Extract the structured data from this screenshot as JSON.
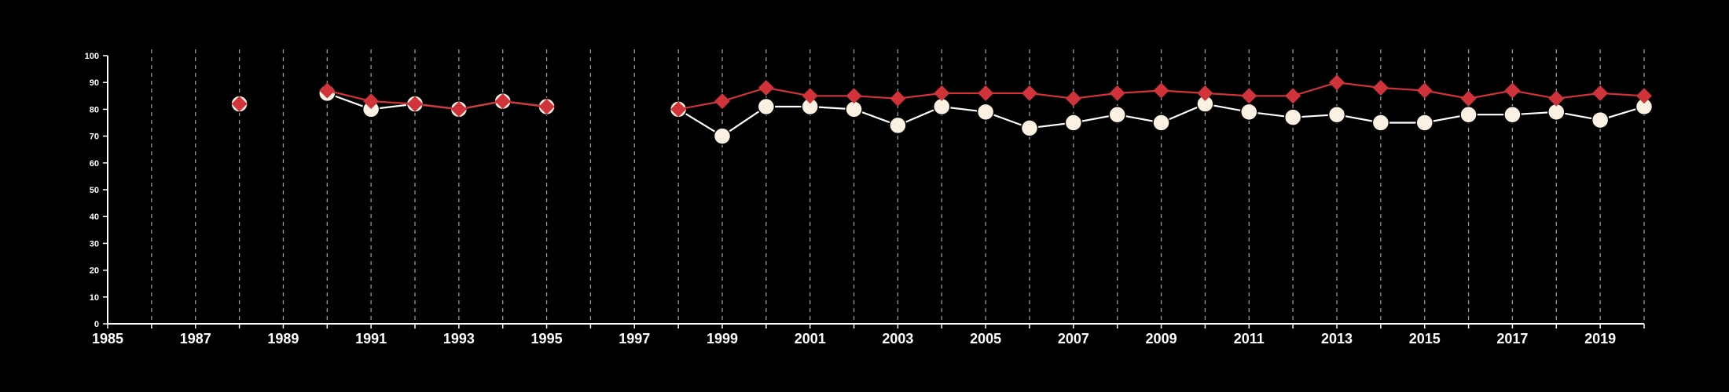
{
  "chart_data": {
    "type": "line",
    "title": "",
    "xlabel": "",
    "ylabel": "",
    "xlim": [
      1985,
      2020
    ],
    "ylim": [
      0,
      100
    ],
    "y_ticks": [
      0,
      10,
      20,
      30,
      40,
      50,
      60,
      70,
      80,
      90,
      100
    ],
    "x_ticks": [
      1985,
      1987,
      1989,
      1991,
      1993,
      1995,
      1997,
      1999,
      2001,
      2003,
      2005,
      2007,
      2009,
      2011,
      2013,
      2015,
      2017,
      2019
    ],
    "grid": "vertical dashed lines at each year",
    "legend": "none",
    "background": "#000000",
    "series": [
      {
        "marker": "circle",
        "color": "#fbf1e3",
        "line_color": "#ffffff",
        "points": [
          [
            1988,
            82
          ],
          [
            1990,
            86
          ],
          [
            1991,
            80
          ],
          [
            1992,
            82
          ],
          [
            1993,
            80
          ],
          [
            1994,
            83
          ],
          [
            1995,
            81
          ],
          [
            1998,
            80
          ],
          [
            1999,
            70
          ],
          [
            2000,
            81
          ],
          [
            2001,
            81
          ],
          [
            2002,
            80
          ],
          [
            2003,
            74
          ],
          [
            2004,
            81
          ],
          [
            2005,
            79
          ],
          [
            2006,
            73
          ],
          [
            2007,
            75
          ],
          [
            2008,
            78
          ],
          [
            2009,
            75
          ],
          [
            2010,
            82
          ],
          [
            2011,
            79
          ],
          [
            2012,
            77
          ],
          [
            2013,
            78
          ],
          [
            2014,
            75
          ],
          [
            2015,
            75
          ],
          [
            2016,
            78
          ],
          [
            2017,
            78
          ],
          [
            2018,
            79
          ],
          [
            2019,
            76
          ],
          [
            2020,
            81
          ]
        ],
        "segments": [
          [
            1990,
            1995
          ],
          [
            1998,
            2020
          ]
        ]
      },
      {
        "marker": "diamond",
        "color": "#d0343a",
        "line_color": "#d0343a",
        "points": [
          [
            1988,
            82
          ],
          [
            1990,
            87
          ],
          [
            1991,
            83
          ],
          [
            1992,
            82
          ],
          [
            1993,
            80
          ],
          [
            1994,
            83
          ],
          [
            1995,
            81
          ],
          [
            1998,
            80
          ],
          [
            1999,
            83
          ],
          [
            2000,
            88
          ],
          [
            2001,
            85
          ],
          [
            2002,
            85
          ],
          [
            2003,
            84
          ],
          [
            2004,
            86
          ],
          [
            2005,
            86
          ],
          [
            2006,
            86
          ],
          [
            2007,
            84
          ],
          [
            2008,
            86
          ],
          [
            2009,
            87
          ],
          [
            2010,
            86
          ],
          [
            2011,
            85
          ],
          [
            2012,
            85
          ],
          [
            2013,
            90
          ],
          [
            2014,
            88
          ],
          [
            2015,
            87
          ],
          [
            2016,
            84
          ],
          [
            2017,
            87
          ],
          [
            2018,
            84
          ],
          [
            2019,
            86
          ],
          [
            2020,
            85
          ]
        ],
        "segments": [
          [
            1990,
            1995
          ],
          [
            1998,
            2020
          ]
        ]
      }
    ]
  }
}
